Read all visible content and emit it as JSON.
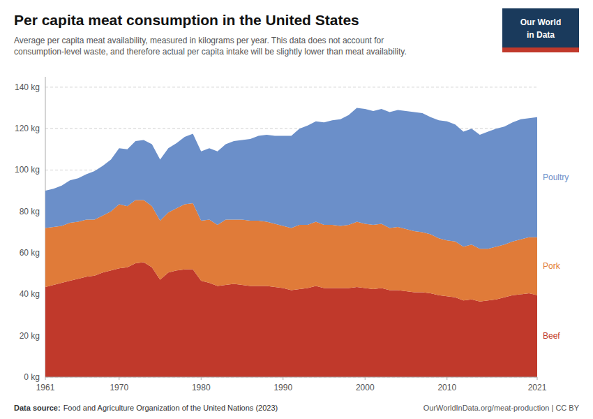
{
  "chart_data": {
    "type": "area",
    "stacked": true,
    "title": "Per capita meat consumption in the United States",
    "subtitle": [
      "Average per capita meat availability, measured in kilograms per year. This data does not account for",
      "consumption-level waste, and therefore actual per capita intake will be slightly lower than meat availability."
    ],
    "annotations": [
      "Data source:",
      "Food and Agriculture Organization of the United Nations (2023)",
      "OurWorldInData.org/meat-production | CC BY",
      "Our World",
      "in Data"
    ],
    "x": [
      1961,
      1962,
      1963,
      1964,
      1965,
      1966,
      1967,
      1968,
      1969,
      1970,
      1971,
      1972,
      1973,
      1974,
      1975,
      1976,
      1977,
      1978,
      1979,
      1980,
      1981,
      1982,
      1983,
      1984,
      1985,
      1986,
      1987,
      1988,
      1989,
      1990,
      1991,
      1992,
      1993,
      1994,
      1995,
      1996,
      1997,
      1998,
      1999,
      2000,
      2001,
      2002,
      2003,
      2004,
      2005,
      2006,
      2007,
      2008,
      2009,
      2010,
      2011,
      2012,
      2013,
      2014,
      2015,
      2016,
      2017,
      2018,
      2019,
      2020,
      2021
    ],
    "series": [
      {
        "name": "Beef",
        "color": "#c0392b",
        "values": [
          43.5,
          44.5,
          45.5,
          46.5,
          47.5,
          48.5,
          49.0,
          50.5,
          51.5,
          52.5,
          53.0,
          55.0,
          55.5,
          53.0,
          47.0,
          50.5,
          51.5,
          52.0,
          52.0,
          46.5,
          45.5,
          44.0,
          44.5,
          45.0,
          44.5,
          44.0,
          44.0,
          44.0,
          43.5,
          43.0,
          42.0,
          42.5,
          43.0,
          44.0,
          43.0,
          43.0,
          43.0,
          43.0,
          43.5,
          43.0,
          42.5,
          43.0,
          42.0,
          42.0,
          41.5,
          41.0,
          41.0,
          40.5,
          39.5,
          39.0,
          38.5,
          37.0,
          37.5,
          36.5,
          37.0,
          37.5,
          38.5,
          39.5,
          40.0,
          40.5,
          39.5
        ]
      },
      {
        "name": "Pork",
        "color": "#e07b39",
        "values": [
          28.5,
          28.0,
          27.5,
          28.0,
          27.5,
          27.5,
          27.0,
          27.5,
          28.5,
          31.0,
          29.5,
          30.5,
          30.0,
          29.5,
          28.5,
          29.0,
          30.0,
          31.5,
          32.0,
          29.0,
          30.5,
          29.5,
          31.5,
          31.0,
          31.5,
          31.5,
          31.5,
          31.0,
          30.5,
          30.0,
          30.0,
          31.0,
          30.5,
          31.0,
          30.5,
          30.5,
          30.0,
          30.5,
          31.5,
          31.0,
          31.0,
          31.0,
          30.0,
          30.5,
          30.0,
          29.5,
          29.0,
          28.5,
          27.5,
          27.0,
          27.0,
          26.0,
          26.5,
          25.5,
          25.0,
          25.5,
          25.5,
          26.0,
          26.5,
          27.0,
          28.0
        ]
      },
      {
        "name": "Poultry",
        "color": "#6b8fc9",
        "values": [
          18.0,
          18.5,
          19.5,
          20.5,
          21.0,
          22.0,
          23.5,
          24.0,
          25.0,
          27.0,
          27.5,
          28.5,
          29.0,
          30.0,
          29.5,
          31.0,
          31.5,
          32.5,
          33.5,
          33.5,
          34.5,
          35.5,
          36.5,
          38.0,
          38.5,
          39.5,
          41.0,
          42.0,
          42.5,
          43.5,
          44.5,
          46.5,
          48.0,
          48.5,
          49.5,
          50.5,
          51.5,
          53.0,
          55.0,
          55.5,
          55.0,
          55.5,
          56.0,
          56.5,
          57.0,
          57.5,
          57.5,
          56.5,
          57.0,
          57.5,
          56.5,
          55.5,
          56.0,
          55.0,
          56.5,
          57.0,
          57.0,
          57.5,
          58.0,
          57.5,
          58.0
        ]
      }
    ],
    "xlim": [
      1961,
      2021
    ],
    "xticks": [
      1961,
      1970,
      1980,
      1990,
      2000,
      2010,
      2021
    ],
    "ylim": [
      0,
      145
    ],
    "yticks": [
      {
        "value": 0,
        "label": "0 kg"
      },
      {
        "value": 20,
        "label": "20 kg"
      },
      {
        "value": 40,
        "label": "40 kg"
      },
      {
        "value": 60,
        "label": "60 kg"
      },
      {
        "value": 80,
        "label": "80 kg"
      },
      {
        "value": 100,
        "label": "100 kg"
      },
      {
        "value": 120,
        "label": "120 kg"
      },
      {
        "value": 140,
        "label": "140 kg"
      }
    ],
    "grid": true
  }
}
